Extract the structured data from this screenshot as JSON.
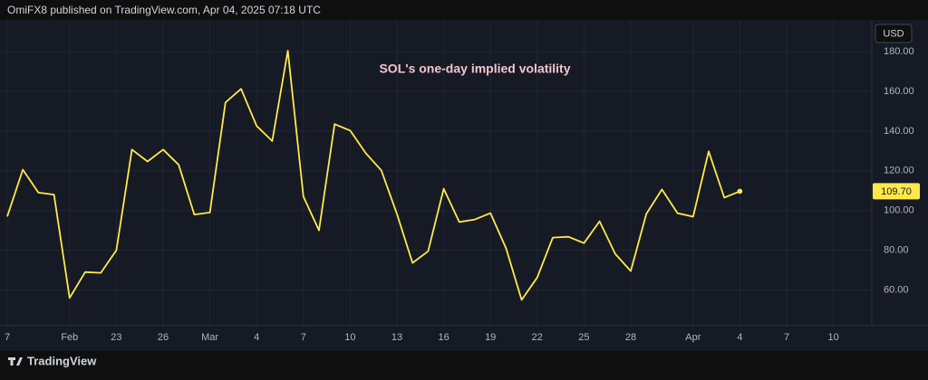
{
  "header": "OmiFX8 published on TradingView.com, Apr 04, 2025 07:18 UTC",
  "footer": "TradingView",
  "chart_data": {
    "type": "line",
    "title": "SOL's one-day implied volatility",
    "currency_label": "USD",
    "color": "#ffe94a",
    "categories": [
      "7",
      null,
      null,
      null,
      "Feb",
      null,
      null,
      "23",
      null,
      null,
      "26",
      null,
      null,
      "Mar",
      null,
      null,
      "4",
      null,
      null,
      "7",
      null,
      null,
      "10",
      null,
      null,
      "13",
      null,
      null,
      "16",
      null,
      null,
      "19",
      null,
      null,
      "22",
      null,
      null,
      "25",
      null,
      null,
      "28",
      null,
      null,
      null,
      "Apr",
      null,
      null,
      "4",
      null,
      null,
      "7",
      null,
      null,
      "10"
    ],
    "values": [
      97,
      120.6,
      109,
      108,
      56,
      69,
      68.6,
      80,
      130.7,
      124.7,
      130.7,
      123,
      98,
      99,
      154.4,
      161.3,
      142.6,
      135,
      180.5,
      107,
      90,
      143.5,
      140.3,
      128.9,
      120.2,
      98.3,
      73.6,
      79.5,
      111,
      94.2,
      95.5,
      98.7,
      81,
      55,
      66.3,
      86.4,
      86.8,
      83.6,
      94.6,
      78.2,
      69.5,
      98.3,
      110.6,
      98.7,
      96.9,
      129.8,
      106.5,
      109.7,
      null,
      null,
      null,
      null,
      null,
      null
    ],
    "value_labels": [
      null,
      null,
      null,
      null,
      null,
      null,
      null,
      null,
      null,
      null,
      null,
      null,
      null,
      null,
      null,
      null,
      null,
      null,
      null,
      null,
      null,
      null,
      null,
      null,
      null,
      null,
      null,
      null,
      null,
      null,
      null,
      null,
      null,
      null,
      null,
      null,
      null,
      null,
      null,
      null,
      null,
      null,
      null,
      null,
      null,
      null,
      null,
      "109.70",
      null,
      null,
      null,
      null,
      null,
      null
    ],
    "ylim": [
      42,
      196
    ],
    "yticks": [
      {
        "value": 60,
        "label": "60.00"
      },
      {
        "value": 80,
        "label": "80.00"
      },
      {
        "value": 100,
        "label": "100.00"
      },
      {
        "value": 120,
        "label": "120.00"
      },
      {
        "value": 140,
        "label": "140.00"
      },
      {
        "value": 160,
        "label": "160.00"
      },
      {
        "value": 180,
        "label": "180.00"
      }
    ],
    "grid": true
  }
}
